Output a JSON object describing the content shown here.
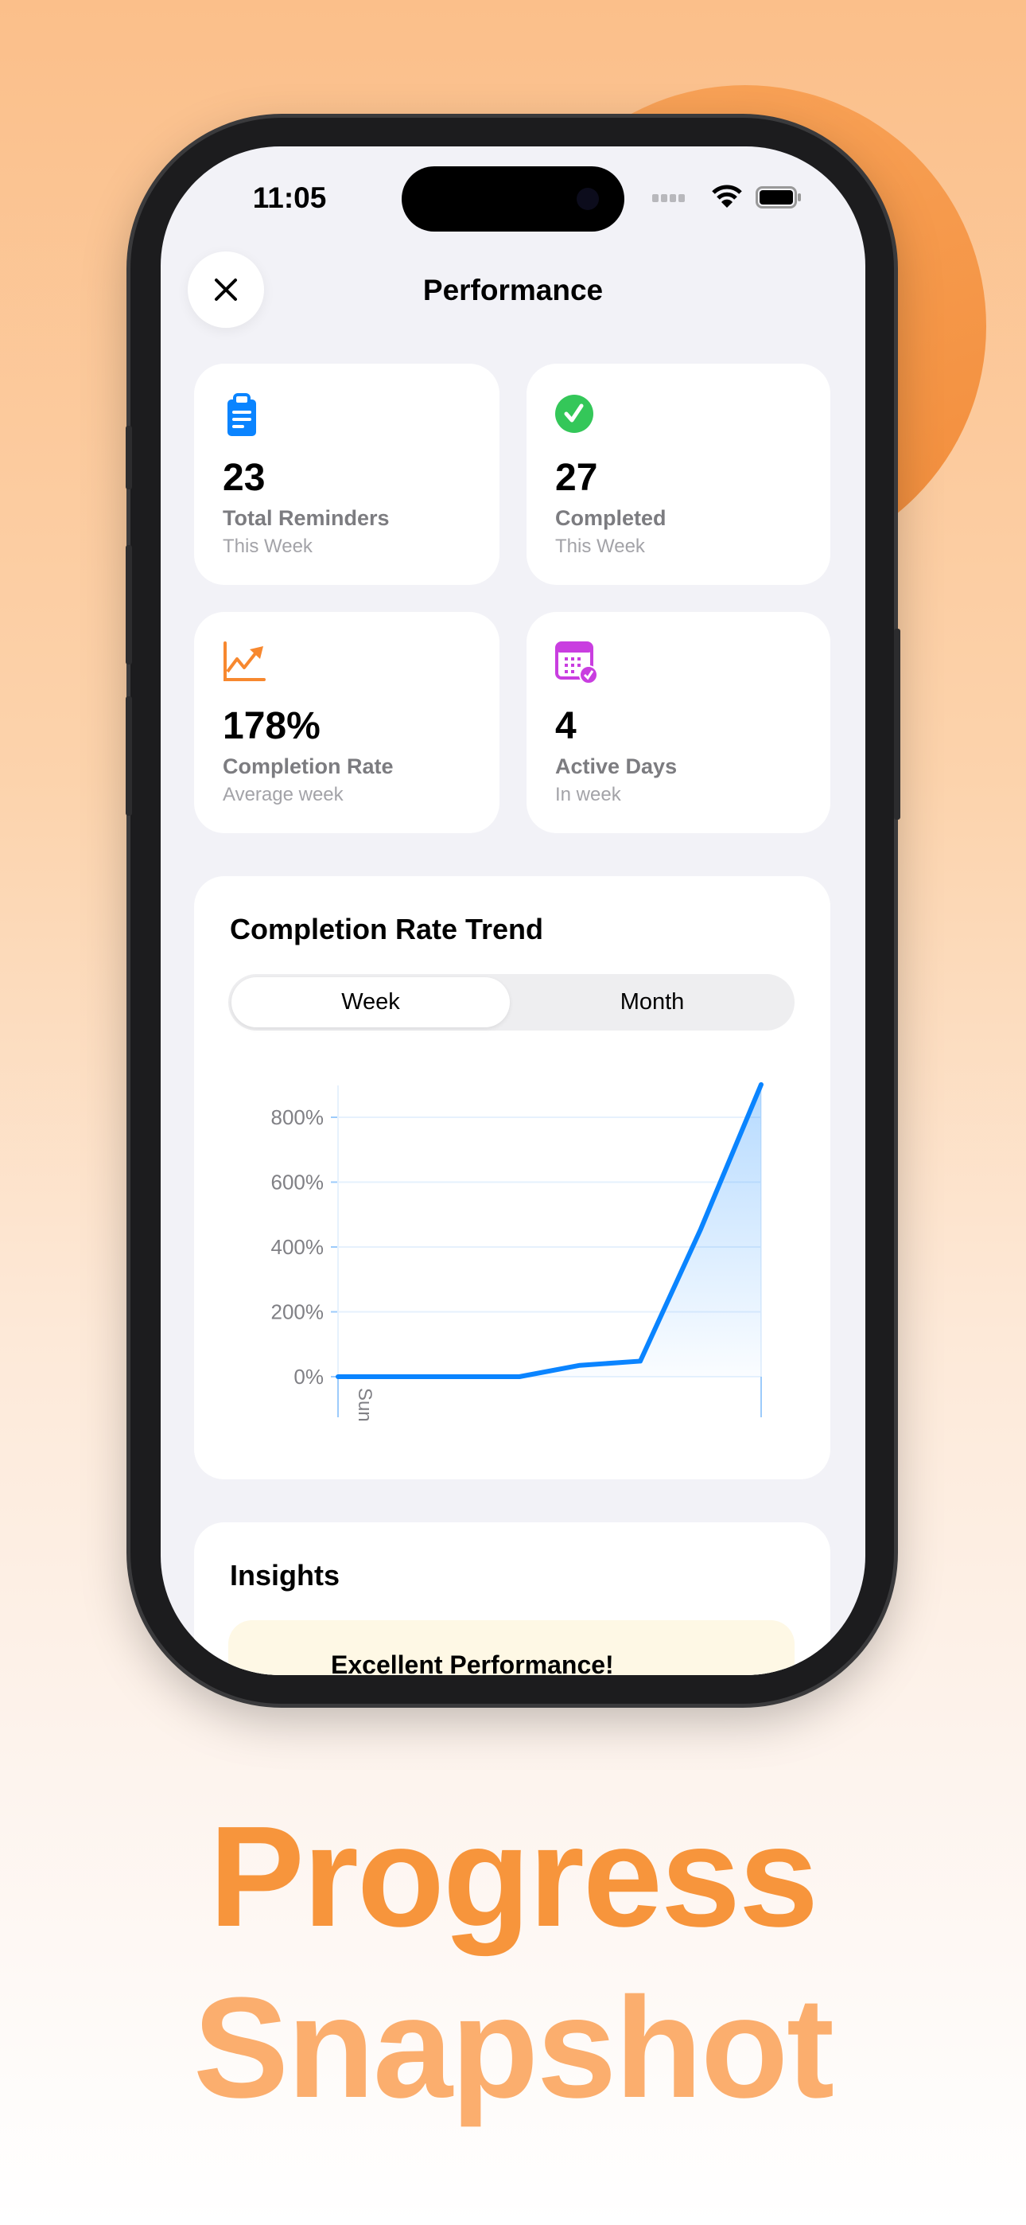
{
  "status_bar": {
    "time": "11:05"
  },
  "header": {
    "title": "Performance",
    "close_icon": "xmark-icon"
  },
  "stats": [
    {
      "value": "23",
      "label": "Total Reminders",
      "sub": "This Week",
      "icon": "clipboard-icon",
      "color": "#0a84ff"
    },
    {
      "value": "27",
      "label": "Completed",
      "sub": "This Week",
      "icon": "checkmark-circle-icon",
      "color": "#34c759"
    },
    {
      "value": "178%",
      "label": "Completion Rate",
      "sub": "Average week",
      "icon": "chart-trend-up-icon",
      "color": "#f7882f"
    },
    {
      "value": "4",
      "label": "Active Days",
      "sub": "In week",
      "icon": "calendar-check-icon",
      "color": "#c93ee0"
    }
  ],
  "trend": {
    "title": "Completion Rate Trend",
    "segments": [
      "Week",
      "Month"
    ],
    "selected": "Week"
  },
  "chart_data": {
    "type": "area",
    "x_labels": [
      "Sun"
    ],
    "values": [
      0,
      0,
      0,
      0,
      35,
      48,
      455,
      901
    ],
    "yticks": [
      "800%",
      "600%",
      "400%",
      "200%",
      "0%"
    ],
    "ylim": [
      0,
      900
    ],
    "grid": true,
    "line_color": "#0a84ff"
  },
  "insights": {
    "title": "Insights",
    "items": [
      {
        "title": "Excellent Performance!"
      }
    ]
  },
  "headline": {
    "line1": "Progress",
    "line2": "Snapshot"
  }
}
